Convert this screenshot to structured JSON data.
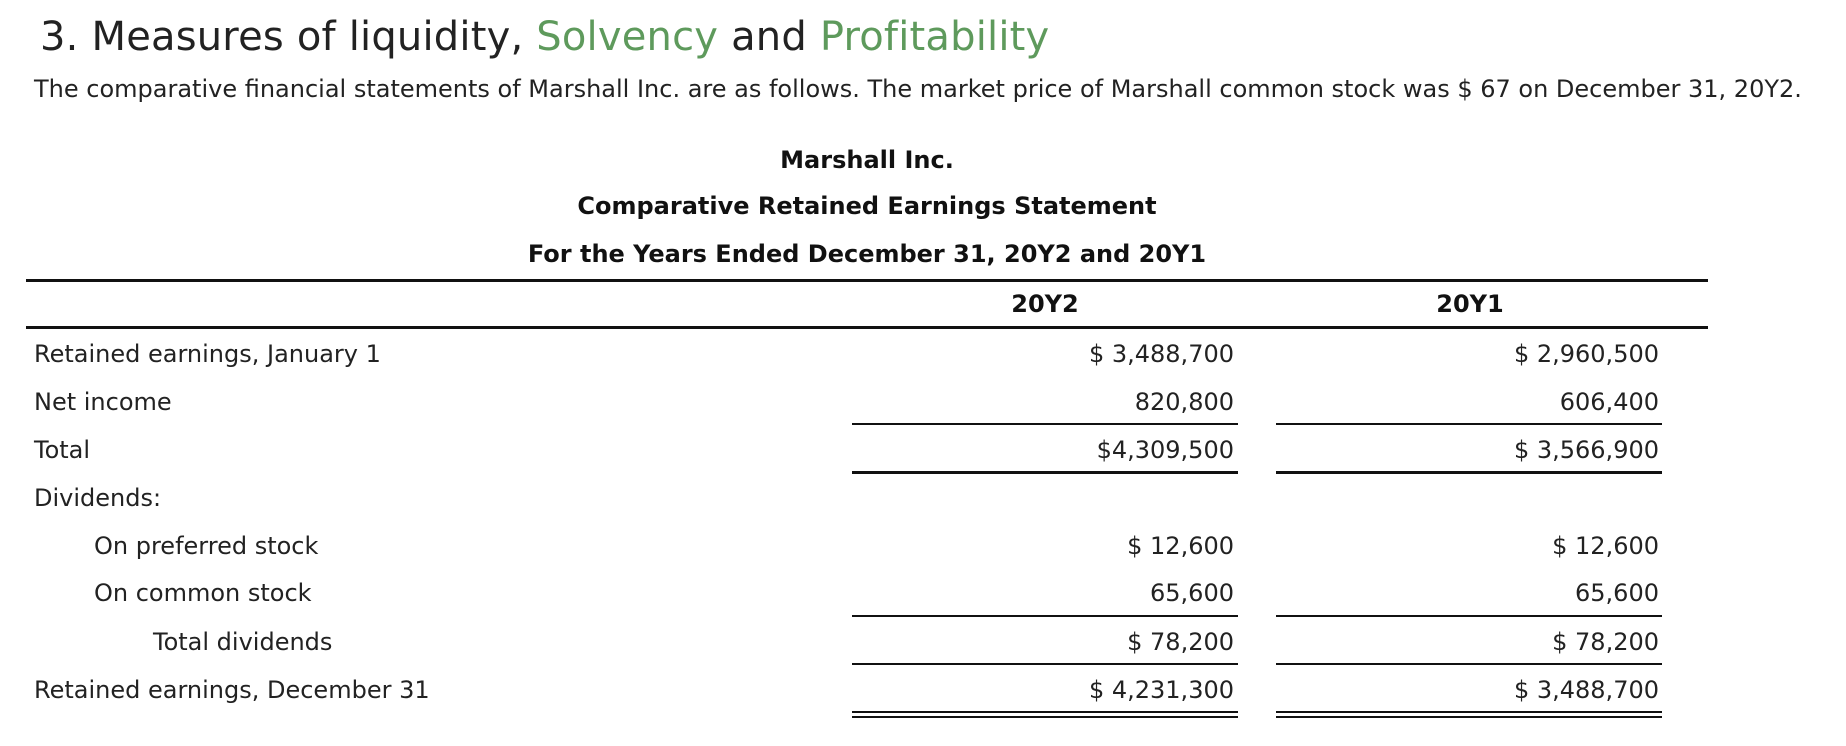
{
  "title": {
    "part1": "3. Measures of liquidity,",
    "part2": "Solvency",
    "part3": "and",
    "part4": "Profitability"
  },
  "intro": "The comparative financial statements of Marshall Inc. are as follows. The market price of Marshall common stock was $ 67 on December 31, 20Y2.",
  "statement": {
    "company": "Marshall Inc.",
    "name": "Comparative Retained Earnings Statement",
    "period": "For the Years Ended December 31, 20Y2 and 20Y1",
    "columns": [
      "20Y2",
      "20Y1"
    ],
    "rows": [
      {
        "label": "Retained earnings, January 1",
        "y2": "$ 3,488,700",
        "y1": "$ 2,960,500"
      },
      {
        "label": "Net income",
        "y2": "820,800",
        "y1": "606,400"
      },
      {
        "label": "Total",
        "y2": "$4,309,500",
        "y1": "$ 3,566,900"
      },
      {
        "label": "Dividends:",
        "y2": "",
        "y1": ""
      },
      {
        "label": "On preferred stock",
        "y2": "$ 12,600",
        "y1": "$ 12,600"
      },
      {
        "label": "On common stock",
        "y2": "65,600",
        "y1": "65,600"
      },
      {
        "label": "Total dividends",
        "y2": "$ 78,200",
        "y1": "$ 78,200"
      },
      {
        "label": "Retained earnings, December 31",
        "y2": "$ 4,231,300",
        "y1": "$ 3,488,700"
      }
    ]
  },
  "colors": {
    "accent_green": "#5e9a5c",
    "text": "#222222"
  }
}
